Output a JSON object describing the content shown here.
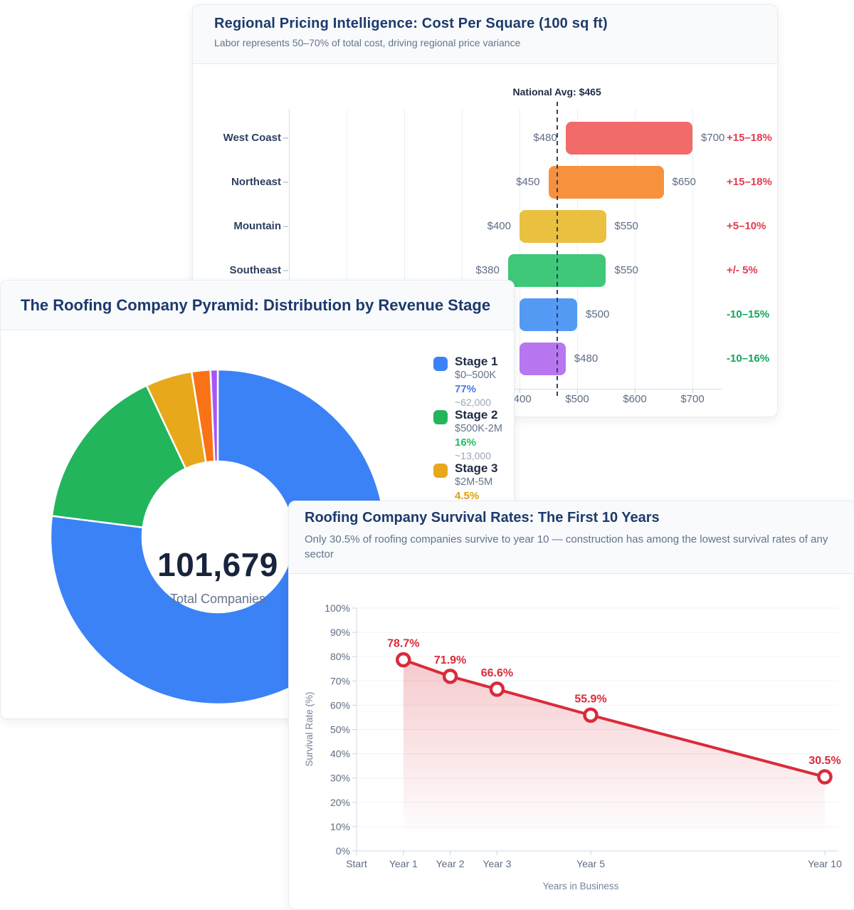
{
  "cards": {
    "pricing": {
      "title": "Regional Pricing Intelligence: Cost Per Square (100 sq ft)",
      "subtitle": "Labor represents 50–70% of total cost, driving regional price variance"
    },
    "pyramid": {
      "title": "The Roofing Company Pyramid: Distribution by Revenue Stage",
      "center_value": "101,679",
      "center_label": "Total Companies"
    },
    "survival": {
      "title": "Roofing Company Survival Rates: The First 10 Years",
      "subtitle": "Only 30.5% of roofing companies survive to year 10 — construction has among the lowest survival rates of any sector"
    }
  },
  "chart_data": [
    {
      "type": "bar",
      "orientation": "horizontal-range",
      "title": "Regional Pricing Intelligence: Cost Per Square (100 sq ft)",
      "x_range": [
        0,
        750
      ],
      "grid_step": 100,
      "x_ticks": [
        {
          "value": 400,
          "label": "$400"
        },
        {
          "value": 500,
          "label": "$500"
        },
        {
          "value": 600,
          "label": "$600"
        },
        {
          "value": 700,
          "label": "$700"
        }
      ],
      "national_avg": {
        "value": 465,
        "label": "National Avg: $465"
      },
      "rows": [
        {
          "region": "West Coast",
          "min": 480,
          "max": 700,
          "min_label": "$480",
          "max_label": "$700",
          "color": "#f26b6b",
          "variance": "+15–18%",
          "variance_color": "#e23c4f"
        },
        {
          "region": "Northeast",
          "min": 450,
          "max": 650,
          "min_label": "$450",
          "max_label": "$650",
          "color": "#f8913e",
          "variance": "+15–18%",
          "variance_color": "#e23c4f"
        },
        {
          "region": "Mountain",
          "min": 400,
          "max": 550,
          "min_label": "$400",
          "max_label": "$550",
          "color": "#e9c03f",
          "variance": "+5–10%",
          "variance_color": "#e23c4f"
        },
        {
          "region": "Southeast",
          "min": 380,
          "max": 550,
          "min_label": "$380",
          "max_label": "$550",
          "color": "#3ec878",
          "variance": "+/- 5%",
          "variance_color": "#e23c4f"
        },
        {
          "region": "",
          "min": 400,
          "max": 500,
          "min_label": "",
          "max_label": "$500",
          "color": "#549af5",
          "variance": "-10–15%",
          "variance_color": "#14a45c"
        },
        {
          "region": "",
          "min": 400,
          "max": 480,
          "min_label": "",
          "max_label": "$480",
          "color": "#b877f1",
          "variance": "-10–16%",
          "variance_color": "#14a45c"
        }
      ]
    },
    {
      "type": "pie",
      "donut": true,
      "title": "The Roofing Company Pyramid: Distribution by Revenue Stage",
      "center_value": "101,679",
      "center_label": "Total Companies",
      "segments": [
        {
          "name": "Stage 1",
          "range": "$0–500K",
          "pct": 77,
          "pct_label": "77%",
          "count": "~62,000",
          "color": "#3b82f6",
          "pct_color": "#4479f2"
        },
        {
          "name": "Stage 2",
          "range": "$500K-2M",
          "pct": 16,
          "pct_label": "16%",
          "count": "~13,000",
          "color": "#22b55c",
          "pct_color": "#21c061"
        },
        {
          "name": "Stage 3",
          "range": "$2M-5M",
          "pct": 4.5,
          "pct_label": "4.5%",
          "count": "",
          "color": "#e7a81c",
          "pct_color": "#dfa012"
        },
        {
          "name": "",
          "range": "",
          "pct": 1.8,
          "pct_label": "",
          "count": "",
          "color": "#f97316",
          "pct_color": ""
        },
        {
          "name": "",
          "range": "",
          "pct": 0.7,
          "pct_label": "",
          "count": "",
          "color": "#a855f7",
          "pct_color": ""
        }
      ]
    },
    {
      "type": "line",
      "title": "Roofing Company Survival Rates: The First 10 Years",
      "xlabel": "Years in Business",
      "ylabel": "Survival Rate (%)",
      "ylim": [
        0,
        100
      ],
      "ytick_step": 10,
      "ytick_suffix": "%",
      "line_color": "#d92b3a",
      "x_ticks": [
        {
          "year": 0,
          "label": "Start"
        },
        {
          "year": 1,
          "label": "Year 1"
        },
        {
          "year": 2,
          "label": "Year 2"
        },
        {
          "year": 3,
          "label": "Year 3"
        },
        {
          "year": 5,
          "label": "Year 5"
        },
        {
          "year": 10,
          "label": "Year 10"
        }
      ],
      "points": [
        {
          "year": 1,
          "value": 78.7,
          "label": "78.7%"
        },
        {
          "year": 2,
          "value": 71.9,
          "label": "71.9%"
        },
        {
          "year": 3,
          "value": 66.6,
          "label": "66.6%"
        },
        {
          "year": 5,
          "value": 55.9,
          "label": "55.9%"
        },
        {
          "year": 10,
          "value": 30.5,
          "label": "30.5%"
        }
      ]
    }
  ]
}
